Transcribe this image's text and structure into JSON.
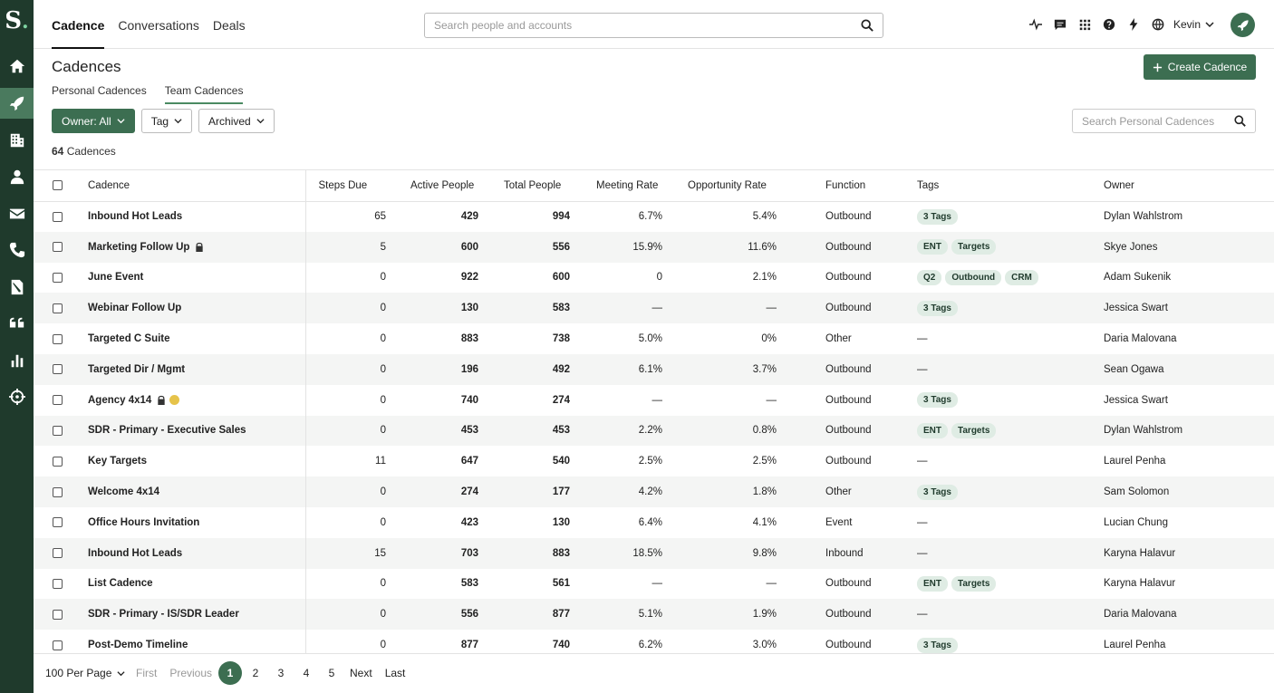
{
  "brand": {
    "logo_text": "S",
    "accent": "#3c6e51",
    "sidebar_bg": "#1f3a2c"
  },
  "sidebar": {
    "icons": [
      "home-icon",
      "rocket-icon",
      "building-icon",
      "person-icon",
      "mail-icon",
      "phone-icon",
      "document-icon",
      "quote-icon",
      "bar-chart-icon",
      "crosshair-icon"
    ]
  },
  "topnav": {
    "tabs": [
      {
        "label": "Cadence",
        "active": true
      },
      {
        "label": "Conversations",
        "active": false
      },
      {
        "label": "Deals",
        "active": false
      }
    ],
    "search_placeholder": "Search people and accounts",
    "user_name": "Kevin"
  },
  "header": {
    "title": "Cadences",
    "create_label": "Create Cadence",
    "subtabs": [
      {
        "label": "Personal Cadences",
        "active": false
      },
      {
        "label": "Team Cadences",
        "active": true
      }
    ],
    "filters": {
      "owner": "Owner: All",
      "tag": "Tag",
      "archived": "Archived"
    },
    "search_placeholder": "Search Personal Cadences",
    "count_number": "64",
    "count_label": "Cadences"
  },
  "table": {
    "columns": {
      "cadence": "Cadence",
      "steps_due": "Steps Due",
      "active_people": "Active People",
      "total_people": "Total People",
      "meeting_rate": "Meeting Rate",
      "opportunity_rate": "Opportunity Rate",
      "function": "Function",
      "tags": "Tags",
      "owner": "Owner"
    },
    "rows": [
      {
        "name": "Inbound Hot Leads",
        "lock": false,
        "warn": false,
        "steps": "65",
        "active": "429",
        "total": "994",
        "meeting": "6.7%",
        "opp": "5.4%",
        "function": "Outbound",
        "tags": [
          "3 Tags"
        ],
        "owner": "Dylan Wahlstrom"
      },
      {
        "name": "Marketing Follow Up",
        "lock": true,
        "warn": false,
        "steps": "5",
        "active": "600",
        "total": "556",
        "meeting": "15.9%",
        "opp": "11.6%",
        "function": "Outbound",
        "tags": [
          "ENT",
          "Targets"
        ],
        "owner": "Skye Jones"
      },
      {
        "name": "June Event",
        "lock": false,
        "warn": false,
        "steps": "0",
        "active": "922",
        "total": "600",
        "meeting": "0",
        "opp": "2.1%",
        "function": "Outbound",
        "tags": [
          "Q2",
          "Outbound",
          "CRM"
        ],
        "owner": "Adam Sukenik"
      },
      {
        "name": "Webinar Follow Up",
        "lock": false,
        "warn": false,
        "steps": "0",
        "active": "130",
        "total": "583",
        "meeting": "—",
        "opp": "—",
        "function": "Outbound",
        "tags": [
          "3 Tags"
        ],
        "owner": "Jessica Swart"
      },
      {
        "name": "Targeted C Suite",
        "lock": false,
        "warn": false,
        "steps": "0",
        "active": "883",
        "total": "738",
        "meeting": "5.0%",
        "opp": "0%",
        "function": "Other",
        "tags": [],
        "owner": "Daria Malovana"
      },
      {
        "name": "Targeted Dir / Mgmt",
        "lock": false,
        "warn": false,
        "steps": "0",
        "active": "196",
        "total": "492",
        "meeting": "6.1%",
        "opp": "3.7%",
        "function": "Outbound",
        "tags": [],
        "owner": "Sean Ogawa"
      },
      {
        "name": "Agency 4x14",
        "lock": true,
        "warn": true,
        "steps": "0",
        "active": "740",
        "total": "274",
        "meeting": "—",
        "opp": "—",
        "function": "Outbound",
        "tags": [
          "3 Tags"
        ],
        "owner": "Jessica Swart"
      },
      {
        "name": "SDR - Primary - Executive Sales",
        "lock": false,
        "warn": false,
        "steps": "0",
        "active": "453",
        "total": "453",
        "meeting": "2.2%",
        "opp": "0.8%",
        "function": "Outbound",
        "tags": [
          "ENT",
          "Targets"
        ],
        "owner": "Dylan Wahlstrom"
      },
      {
        "name": "Key Targets",
        "lock": false,
        "warn": false,
        "steps": "11",
        "active": "647",
        "total": "540",
        "meeting": "2.5%",
        "opp": "2.5%",
        "function": "Outbound",
        "tags": [],
        "owner": "Laurel Penha"
      },
      {
        "name": "Welcome 4x14",
        "lock": false,
        "warn": false,
        "steps": "0",
        "active": "274",
        "total": "177",
        "meeting": "4.2%",
        "opp": "1.8%",
        "function": "Other",
        "tags": [
          "3 Tags"
        ],
        "owner": "Sam Solomon"
      },
      {
        "name": "Office Hours Invitation",
        "lock": false,
        "warn": false,
        "steps": "0",
        "active": "423",
        "total": "130",
        "meeting": "6.4%",
        "opp": "4.1%",
        "function": "Event",
        "tags": [],
        "owner": "Lucian Chung"
      },
      {
        "name": "Inbound Hot Leads",
        "lock": false,
        "warn": false,
        "steps": "15",
        "active": "703",
        "total": "883",
        "meeting": "18.5%",
        "opp": "9.8%",
        "function": "Inbound",
        "tags": [],
        "owner": "Karyna Halavur"
      },
      {
        "name": "List Cadence",
        "lock": false,
        "warn": false,
        "steps": "0",
        "active": "583",
        "total": "561",
        "meeting": "—",
        "opp": "—",
        "function": "Outbound",
        "tags": [
          "ENT",
          "Targets"
        ],
        "owner": "Karyna Halavur"
      },
      {
        "name": "SDR - Primary - IS/SDR Leader",
        "lock": false,
        "warn": false,
        "steps": "0",
        "active": "556",
        "total": "877",
        "meeting": "5.1%",
        "opp": "1.9%",
        "function": "Outbound",
        "tags": [],
        "owner": "Daria Malovana"
      },
      {
        "name": "Post-Demo Timeline",
        "lock": false,
        "warn": false,
        "steps": "0",
        "active": "877",
        "total": "740",
        "meeting": "6.2%",
        "opp": "3.0%",
        "function": "Outbound",
        "tags": [
          "3 Tags"
        ],
        "owner": "Laurel Penha"
      }
    ],
    "empty_tags": "—"
  },
  "footer": {
    "per_page": "100 Per Page",
    "first": "First",
    "previous": "Previous",
    "pages": [
      "1",
      "2",
      "3",
      "4",
      "5"
    ],
    "current_page": "1",
    "next": "Next",
    "last": "Last"
  }
}
